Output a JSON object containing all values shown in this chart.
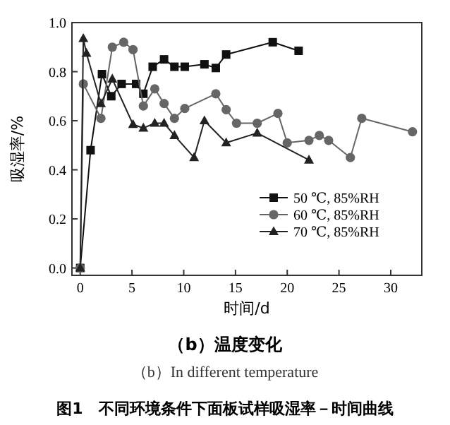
{
  "chart_data": {
    "type": "line",
    "xlabel": "时间/d",
    "ylabel": "吸湿率/%",
    "xlim": [
      -0.8,
      33
    ],
    "xticks": [
      0,
      5,
      10,
      15,
      20,
      25,
      30
    ],
    "ylim": [
      -0.03,
      1.0
    ],
    "yticks": [
      {
        "value": 0,
        "label": "0.0"
      },
      {
        "value": 0.2,
        "label": "0.2"
      },
      {
        "value": 0.4,
        "label": "0.4"
      },
      {
        "value": 0.6,
        "label": "0.6"
      },
      {
        "value": 0.8,
        "label": "0.8"
      },
      {
        "value": 1,
        "label": "1.0"
      }
    ],
    "series": [
      {
        "name": "50 ℃, 85%RH",
        "color": "#111111",
        "marker": "square",
        "x": [
          0,
          1,
          2.1,
          3,
          4,
          5.4,
          6.1,
          7,
          8.1,
          9.1,
          10.1,
          12,
          13.1,
          14.1,
          18.6,
          21.1
        ],
        "values": [
          0,
          0.48,
          0.79,
          0.7,
          0.75,
          0.75,
          0.71,
          0.82,
          0.85,
          0.82,
          0.82,
          0.83,
          0.815,
          0.87,
          0.92,
          0.885
        ]
      },
      {
        "name": "60 ℃, 85%RH",
        "color": "#666666",
        "marker": "circle",
        "x": [
          0,
          0.3,
          2,
          3.1,
          4.2,
          5.1,
          6.1,
          7.2,
          8.1,
          9.1,
          10.1,
          13.1,
          14.1,
          15.1,
          17.1,
          19.1,
          20,
          22.1,
          23.1,
          24,
          26.1,
          27.2,
          32.1
        ],
        "values": [
          0,
          0.75,
          0.61,
          0.9,
          0.92,
          0.89,
          0.66,
          0.73,
          0.67,
          0.61,
          0.65,
          0.71,
          0.645,
          0.59,
          0.59,
          0.63,
          0.51,
          0.52,
          0.54,
          0.52,
          0.45,
          0.61,
          0.555
        ]
      },
      {
        "name": "70 ℃, 85%RH",
        "color": "#222222",
        "marker": "triangle",
        "x": [
          0,
          0.3,
          0.6,
          2,
          3.1,
          5.1,
          6.1,
          7.2,
          8.1,
          9.1,
          11,
          12,
          14.1,
          17.1,
          22.1
        ],
        "values": [
          0,
          0.935,
          0.875,
          0.67,
          0.77,
          0.585,
          0.57,
          0.59,
          0.59,
          0.54,
          0.45,
          0.6,
          0.51,
          0.55,
          0.44
        ]
      }
    ],
    "legend": "bottom right",
    "grid": false,
    "annotations": [
      "（b）温度变化",
      "（b）In different temperature",
      "图1　不同环境条件下面板试样吸湿率－时间曲线"
    ]
  }
}
